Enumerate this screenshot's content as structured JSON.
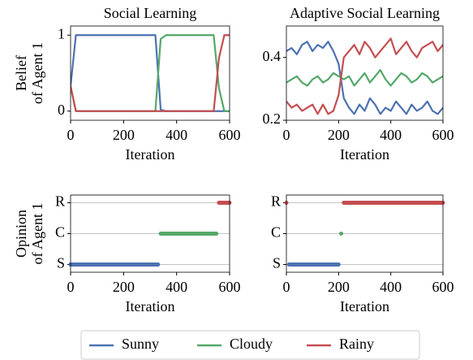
{
  "chart_data": [
    {
      "type": "line",
      "title": "Social Learning",
      "ylabel": [
        "Belief",
        "of Agent 1"
      ],
      "xlabel": "Iteration",
      "x": [
        0,
        20,
        40,
        60,
        80,
        100,
        120,
        140,
        160,
        180,
        200,
        220,
        240,
        260,
        280,
        300,
        320,
        340,
        360,
        380,
        400,
        420,
        440,
        460,
        480,
        500,
        520,
        540,
        560,
        580,
        600
      ],
      "series": [
        {
          "name": "Sunny",
          "color": "#4c72b0",
          "values": [
            0.33,
            1,
            1,
            1,
            1,
            1,
            1,
            1,
            1,
            1,
            1,
            1,
            1,
            1,
            1,
            1,
            1,
            0.02,
            0,
            0,
            0,
            0,
            0,
            0,
            0,
            0,
            0,
            0,
            0,
            0,
            0
          ]
        },
        {
          "name": "Cloudy",
          "color": "#55a868",
          "values": [
            0.33,
            0,
            0,
            0,
            0,
            0,
            0,
            0,
            0,
            0,
            0,
            0,
            0,
            0,
            0,
            0,
            0,
            0.95,
            1,
            1,
            1,
            1,
            1,
            1,
            1,
            1,
            1,
            1,
            0.3,
            0,
            0
          ]
        },
        {
          "name": "Rainy",
          "color": "#c44e52",
          "values": [
            0.33,
            0,
            0,
            0,
            0,
            0,
            0,
            0,
            0,
            0,
            0,
            0,
            0,
            0,
            0,
            0,
            0,
            0,
            0,
            0,
            0,
            0,
            0,
            0,
            0,
            0,
            0,
            0,
            0.7,
            1,
            1
          ]
        }
      ],
      "xlim": [
        0,
        600
      ],
      "xticks": [
        0,
        200,
        400,
        600
      ],
      "ylim": [
        -0.12,
        1.12
      ],
      "yticks": [
        0,
        1
      ],
      "grid": false
    },
    {
      "type": "line",
      "title": "Adaptive Social Learning",
      "xlabel": "Iteration",
      "x": [
        0,
        20,
        40,
        60,
        80,
        100,
        120,
        140,
        160,
        180,
        200,
        220,
        240,
        260,
        280,
        300,
        320,
        340,
        360,
        380,
        400,
        420,
        440,
        460,
        480,
        500,
        520,
        540,
        560,
        580,
        600
      ],
      "series": [
        {
          "name": "Sunny",
          "color": "#4c72b0",
          "values": [
            0.42,
            0.43,
            0.41,
            0.44,
            0.45,
            0.42,
            0.44,
            0.43,
            0.45,
            0.42,
            0.38,
            0.27,
            0.24,
            0.22,
            0.25,
            0.23,
            0.27,
            0.25,
            0.22,
            0.24,
            0.23,
            0.26,
            0.24,
            0.22,
            0.25,
            0.23,
            0.24,
            0.26,
            0.23,
            0.22,
            0.24
          ]
        },
        {
          "name": "Cloudy",
          "color": "#55a868",
          "values": [
            0.32,
            0.33,
            0.34,
            0.32,
            0.31,
            0.33,
            0.34,
            0.32,
            0.33,
            0.35,
            0.34,
            0.33,
            0.34,
            0.31,
            0.33,
            0.35,
            0.32,
            0.34,
            0.36,
            0.33,
            0.31,
            0.33,
            0.35,
            0.34,
            0.32,
            0.33,
            0.35,
            0.34,
            0.32,
            0.33,
            0.34
          ]
        },
        {
          "name": "Rainy",
          "color": "#c44e52",
          "values": [
            0.26,
            0.24,
            0.25,
            0.23,
            0.24,
            0.25,
            0.22,
            0.25,
            0.22,
            0.23,
            0.28,
            0.4,
            0.42,
            0.44,
            0.41,
            0.45,
            0.43,
            0.4,
            0.42,
            0.44,
            0.46,
            0.41,
            0.43,
            0.45,
            0.42,
            0.4,
            0.43,
            0.44,
            0.45,
            0.42,
            0.44
          ]
        }
      ],
      "xlim": [
        0,
        600
      ],
      "xticks": [
        0,
        200,
        400,
        600
      ],
      "ylim": [
        0.2,
        0.5
      ],
      "yticks": [
        0.2,
        0.4
      ],
      "grid": false
    },
    {
      "type": "scatter",
      "ylabel": [
        "Opinion",
        "of Agent 1"
      ],
      "xlabel": "Iteration",
      "x": [
        0,
        10,
        20,
        30,
        40,
        50,
        60,
        70,
        80,
        90,
        100,
        110,
        120,
        130,
        140,
        150,
        160,
        170,
        180,
        190,
        200,
        210,
        220,
        230,
        240,
        250,
        260,
        270,
        280,
        290,
        300,
        310,
        320,
        330,
        340,
        350,
        360,
        370,
        380,
        390,
        400,
        410,
        420,
        430,
        440,
        450,
        460,
        470,
        480,
        490,
        500,
        510,
        520,
        530,
        540,
        550,
        560,
        570,
        580,
        590,
        600
      ],
      "series": [
        {
          "name": "Sunny",
          "color": "#4c72b0",
          "values": [
            0,
            0,
            0,
            0,
            0,
            0,
            0,
            0,
            0,
            0,
            0,
            0,
            0,
            0,
            0,
            0,
            0,
            0,
            0,
            0,
            0,
            0,
            0,
            0,
            0,
            0,
            0,
            0,
            0,
            0,
            0,
            0,
            0,
            0,
            null,
            null,
            null,
            null,
            null,
            null,
            null,
            null,
            null,
            null,
            null,
            null,
            null,
            null,
            null,
            null,
            null,
            null,
            null,
            null,
            null,
            null,
            null,
            null,
            null,
            null,
            null
          ]
        },
        {
          "name": "Cloudy",
          "color": "#55a868",
          "values": [
            null,
            null,
            null,
            null,
            null,
            null,
            null,
            null,
            null,
            null,
            null,
            null,
            null,
            null,
            null,
            null,
            null,
            null,
            null,
            null,
            null,
            null,
            null,
            null,
            null,
            null,
            null,
            null,
            null,
            null,
            null,
            null,
            null,
            null,
            1,
            1,
            1,
            1,
            1,
            1,
            1,
            1,
            1,
            1,
            1,
            1,
            1,
            1,
            1,
            1,
            1,
            1,
            1,
            1,
            1,
            1,
            null,
            null,
            null,
            null,
            null
          ]
        },
        {
          "name": "Rainy",
          "color": "#c44e52",
          "values": [
            null,
            null,
            null,
            null,
            null,
            null,
            null,
            null,
            null,
            null,
            null,
            null,
            null,
            null,
            null,
            null,
            null,
            null,
            null,
            null,
            null,
            null,
            null,
            null,
            null,
            null,
            null,
            null,
            null,
            null,
            null,
            null,
            null,
            null,
            null,
            null,
            null,
            null,
            null,
            null,
            null,
            null,
            null,
            null,
            null,
            null,
            null,
            null,
            null,
            null,
            null,
            null,
            null,
            null,
            null,
            null,
            2,
            2,
            2,
            2,
            2
          ]
        }
      ],
      "xlim": [
        0,
        600
      ],
      "xticks": [
        0,
        200,
        400,
        600
      ],
      "ylim": [
        -0.25,
        2.25
      ],
      "yticks": [
        {
          "value": 0,
          "label": "S"
        },
        {
          "value": 1,
          "label": "C"
        },
        {
          "value": 2,
          "label": "R"
        }
      ],
      "grid": true
    },
    {
      "type": "scatter",
      "xlabel": "Iteration",
      "x": [
        0,
        10,
        20,
        30,
        40,
        50,
        60,
        70,
        80,
        90,
        100,
        110,
        120,
        130,
        140,
        150,
        160,
        170,
        180,
        190,
        200,
        210,
        220,
        230,
        240,
        250,
        260,
        270,
        280,
        290,
        300,
        310,
        320,
        330,
        340,
        350,
        360,
        370,
        380,
        390,
        400,
        410,
        420,
        430,
        440,
        450,
        460,
        470,
        480,
        490,
        500,
        510,
        520,
        530,
        540,
        550,
        560,
        570,
        580,
        590,
        600
      ],
      "series": [
        {
          "name": "Sunny",
          "color": "#4c72b0",
          "values": [
            null,
            0,
            0,
            0,
            0,
            0,
            0,
            0,
            0,
            0,
            0,
            0,
            0,
            0,
            0,
            0,
            0,
            0,
            0,
            0,
            0,
            null,
            null,
            null,
            null,
            null,
            null,
            null,
            null,
            null,
            null,
            null,
            null,
            null,
            null,
            null,
            null,
            null,
            null,
            null,
            null,
            null,
            null,
            null,
            null,
            null,
            null,
            null,
            null,
            null,
            null,
            null,
            null,
            null,
            null,
            null,
            null,
            null,
            null,
            null,
            null
          ]
        },
        {
          "name": "Cloudy",
          "color": "#55a868",
          "values": [
            null,
            null,
            null,
            null,
            null,
            null,
            null,
            null,
            null,
            null,
            null,
            null,
            null,
            null,
            null,
            null,
            null,
            null,
            null,
            null,
            null,
            1,
            null,
            null,
            null,
            null,
            null,
            null,
            null,
            null,
            null,
            null,
            null,
            null,
            null,
            null,
            null,
            null,
            null,
            null,
            null,
            null,
            null,
            null,
            null,
            null,
            null,
            null,
            null,
            null,
            null,
            null,
            null,
            null,
            null,
            null,
            null,
            null,
            null,
            null,
            null
          ]
        },
        {
          "name": "Rainy",
          "color": "#c44e52",
          "values": [
            2,
            null,
            null,
            null,
            null,
            null,
            null,
            null,
            null,
            null,
            null,
            null,
            null,
            null,
            null,
            null,
            null,
            null,
            null,
            null,
            null,
            null,
            2,
            2,
            2,
            2,
            2,
            2,
            2,
            2,
            2,
            2,
            2,
            2,
            2,
            2,
            2,
            2,
            2,
            2,
            2,
            2,
            2,
            2,
            2,
            2,
            2,
            2,
            2,
            2,
            2,
            2,
            2,
            2,
            2,
            2,
            2,
            2,
            2,
            2,
            2
          ]
        }
      ],
      "xlim": [
        0,
        600
      ],
      "xticks": [
        0,
        200,
        400,
        600
      ],
      "ylim": [
        -0.25,
        2.25
      ],
      "yticks": [
        {
          "value": 0,
          "label": "S"
        },
        {
          "value": 1,
          "label": "C"
        },
        {
          "value": 2,
          "label": "R"
        }
      ],
      "grid": true
    }
  ]
}
